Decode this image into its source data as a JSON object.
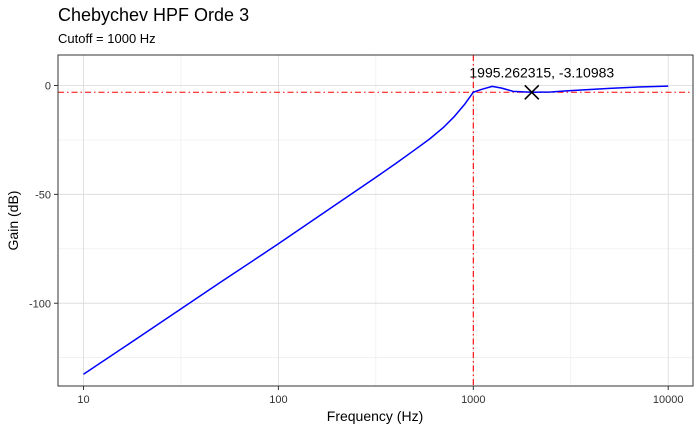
{
  "chart_data": {
    "type": "line",
    "title": "Chebychev HPF Orde 3",
    "subtitle": "Cutoff = 1000 Hz",
    "xlabel": "Frequency (Hz)",
    "ylabel": "Gain (dB)",
    "x_scale": "log",
    "xlim": [
      7.4,
      13400
    ],
    "ylim": [
      -138,
      14
    ],
    "x_ticks": [
      10,
      100,
      1000,
      10000
    ],
    "x_tick_labels": [
      "10",
      "100",
      "1000",
      "10000"
    ],
    "y_ticks": [
      0,
      -50,
      -100
    ],
    "y_tick_labels": [
      "0",
      "-50",
      "-100"
    ],
    "grid": true,
    "series": [
      {
        "color": "#0000ff",
        "x": [
          10,
          20,
          50,
          100,
          200,
          300,
          400,
          500,
          600,
          700,
          800,
          900,
          1000,
          1100,
          1250,
          1400,
          1600,
          1995.262315,
          2500,
          3000,
          5000,
          7000,
          10000
        ],
        "values": [
          -132.6,
          -114.6,
          -90.6,
          -72.7,
          -54.3,
          -43.6,
          -35.8,
          -29.6,
          -24.4,
          -19.4,
          -14.2,
          -8.8,
          -3.1,
          -1.8,
          -0.4,
          -1.2,
          -2.7,
          -3.1,
          -3.0,
          -2.5,
          -1.3,
          -0.7,
          -0.3
        ]
      }
    ],
    "reference_lines": [
      {
        "orientation": "vertical",
        "value": 1000,
        "color": "#ff0000",
        "style": "dashdot"
      },
      {
        "orientation": "horizontal",
        "value": -3.1,
        "color": "#ff0000",
        "style": "dashdot"
      }
    ],
    "marker": {
      "x": 1995.262315,
      "y": -3.10983,
      "symbol": "x",
      "color": "#000000"
    },
    "annotation": {
      "x": 1995.262315,
      "y": -3.10983,
      "text": "1995.262315, -3.10983"
    }
  }
}
